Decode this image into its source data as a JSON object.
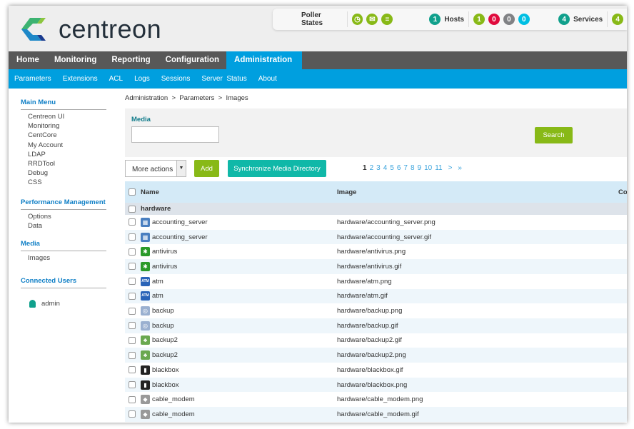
{
  "brand": {
    "name": "centreon"
  },
  "poller": {
    "label": "Poller States",
    "icons": [
      "clock-icon",
      "envelope-icon",
      "database-icon"
    ],
    "hosts_count": "1",
    "hosts_label": "Hosts",
    "host_states": [
      "1",
      "0",
      "0",
      "0"
    ],
    "services_count": "4",
    "services_label": "Services",
    "service_first": "4",
    "colors": {
      "green": "#88b917",
      "red": "#e00b3d",
      "gray": "#818285",
      "cyan": "#00bfe3",
      "teal": "#10a08c"
    }
  },
  "nav": [
    "Home",
    "Monitoring",
    "Reporting",
    "Configuration",
    "Administration"
  ],
  "subnav": [
    "Parameters",
    "Extensions",
    "ACL",
    "Logs",
    "Sessions",
    "Server  Status",
    "About"
  ],
  "sidebar": {
    "main_menu": "Main Menu",
    "main_items": [
      "Centreon UI",
      "Monitoring",
      "CentCore",
      "My Account",
      "LDAP",
      "RRDTool",
      "Debug",
      "CSS"
    ],
    "perf": "Performance Management",
    "perf_items": [
      "Options",
      "Data"
    ],
    "media": "Media",
    "media_items": [
      "Images"
    ],
    "users": "Connected Users",
    "user": "admin"
  },
  "breadcrumb": "Administration  >  Parameters  >  Images",
  "filter": {
    "label": "Media",
    "value": "",
    "search": "Search"
  },
  "toolbar": {
    "more_actions": "More actions",
    "add": "Add",
    "sync": "Synchronize Media Directory"
  },
  "pager": [
    "1",
    "2",
    "3",
    "4",
    "5",
    "6",
    "7",
    "8",
    "9",
    "10",
    "11",
    ">",
    "»"
  ],
  "table": {
    "headers": [
      "Name",
      "Image",
      "Co"
    ],
    "group": "hardware",
    "rows": [
      {
        "name": "accounting_server",
        "image": "hardware/accounting_server.png",
        "icon": "server-icon"
      },
      {
        "name": "accounting_server",
        "image": "hardware/accounting_server.gif",
        "icon": "server-icon"
      },
      {
        "name": "antivirus",
        "image": "hardware/antivirus.png",
        "icon": "bug-icon"
      },
      {
        "name": "antivirus",
        "image": "hardware/antivirus.gif",
        "icon": "bug-icon"
      },
      {
        "name": "atm",
        "image": "hardware/atm.png",
        "icon": "atm-icon"
      },
      {
        "name": "atm",
        "image": "hardware/atm.gif",
        "icon": "atm-icon"
      },
      {
        "name": "backup",
        "image": "hardware/backup.png",
        "icon": "backup-icon"
      },
      {
        "name": "backup",
        "image": "hardware/backup.gif",
        "icon": "backup-icon"
      },
      {
        "name": "backup2",
        "image": "hardware/backup2.gif",
        "icon": "backup2-icon"
      },
      {
        "name": "backup2",
        "image": "hardware/backup2.png",
        "icon": "backup2-icon"
      },
      {
        "name": "blackbox",
        "image": "hardware/blackbox.gif",
        "icon": "blackbox-icon"
      },
      {
        "name": "blackbox",
        "image": "hardware/blackbox.png",
        "icon": "blackbox-icon"
      },
      {
        "name": "cable_modem",
        "image": "hardware/cable_modem.png",
        "icon": "modem-icon"
      },
      {
        "name": "cable_modem",
        "image": "hardware/cable_modem.gif",
        "icon": "modem-icon"
      }
    ]
  }
}
